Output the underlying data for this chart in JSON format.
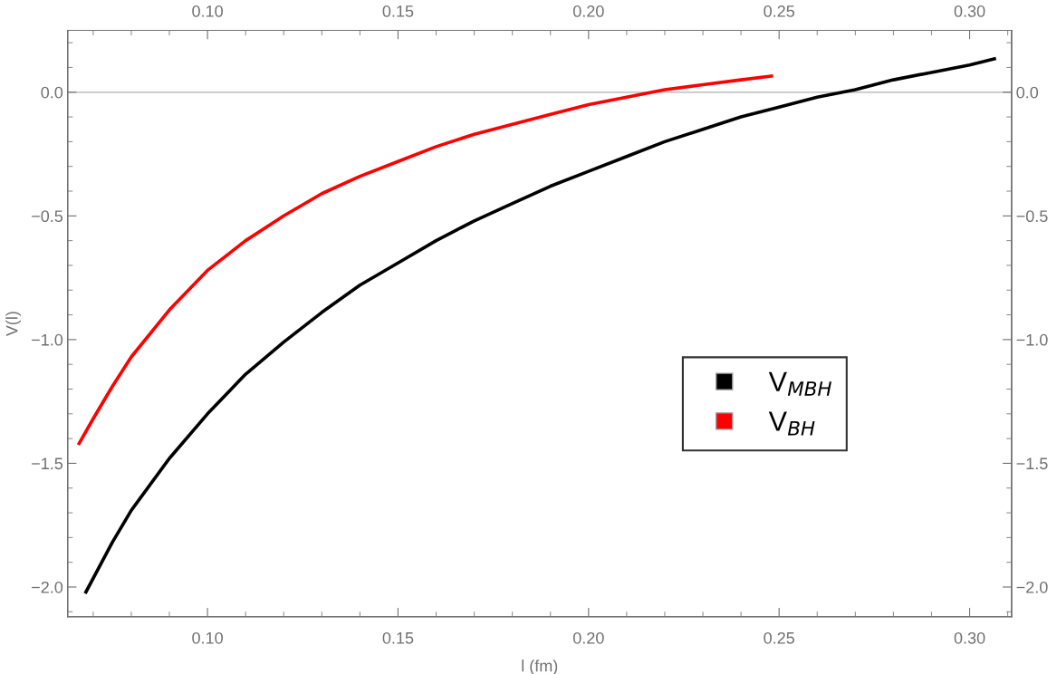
{
  "chart_data": {
    "type": "line",
    "xlabel": "l (fm)",
    "ylabel": "V(l)",
    "xlim": [
      0.0633,
      0.311
    ],
    "ylim": [
      -2.12,
      0.25
    ],
    "xticks": [
      {
        "value": 0.07,
        "label": null
      },
      {
        "value": 0.08,
        "label": null
      },
      {
        "value": 0.09,
        "label": null
      },
      {
        "value": 0.1,
        "label": "0.10"
      },
      {
        "value": 0.11,
        "label": null
      },
      {
        "value": 0.12,
        "label": null
      },
      {
        "value": 0.13,
        "label": null
      },
      {
        "value": 0.14,
        "label": null
      },
      {
        "value": 0.15,
        "label": "0.15"
      },
      {
        "value": 0.16,
        "label": null
      },
      {
        "value": 0.17,
        "label": null
      },
      {
        "value": 0.18,
        "label": null
      },
      {
        "value": 0.19,
        "label": null
      },
      {
        "value": 0.2,
        "label": "0.20"
      },
      {
        "value": 0.21,
        "label": null
      },
      {
        "value": 0.22,
        "label": null
      },
      {
        "value": 0.23,
        "label": null
      },
      {
        "value": 0.24,
        "label": null
      },
      {
        "value": 0.25,
        "label": "0.25"
      },
      {
        "value": 0.26,
        "label": null
      },
      {
        "value": 0.27,
        "label": null
      },
      {
        "value": 0.28,
        "label": null
      },
      {
        "value": 0.29,
        "label": null
      },
      {
        "value": 0.3,
        "label": "0.30"
      },
      {
        "value": 0.31,
        "label": null
      }
    ],
    "x2lim": [
      0.0633,
      0.311
    ],
    "x2ticks": [
      {
        "value": 0.07,
        "label": null
      },
      {
        "value": 0.08,
        "label": null
      },
      {
        "value": 0.09,
        "label": null
      },
      {
        "value": 0.1,
        "label": "0.10"
      },
      {
        "value": 0.11,
        "label": null
      },
      {
        "value": 0.12,
        "label": null
      },
      {
        "value": 0.13,
        "label": null
      },
      {
        "value": 0.14,
        "label": null
      },
      {
        "value": 0.15,
        "label": "0.15"
      },
      {
        "value": 0.16,
        "label": null
      },
      {
        "value": 0.17,
        "label": null
      },
      {
        "value": 0.18,
        "label": null
      },
      {
        "value": 0.19,
        "label": null
      },
      {
        "value": 0.2,
        "label": "0.20"
      },
      {
        "value": 0.21,
        "label": null
      },
      {
        "value": 0.22,
        "label": null
      },
      {
        "value": 0.23,
        "label": null
      },
      {
        "value": 0.24,
        "label": null
      },
      {
        "value": 0.25,
        "label": "0.25"
      },
      {
        "value": 0.26,
        "label": null
      },
      {
        "value": 0.27,
        "label": null
      },
      {
        "value": 0.28,
        "label": null
      },
      {
        "value": 0.29,
        "label": null
      },
      {
        "value": 0.3,
        "label": "0.30"
      },
      {
        "value": 0.31,
        "label": null
      }
    ],
    "yticks": [
      {
        "value": -2.1,
        "label": null
      },
      {
        "value": -2.0,
        "label": "−2.0"
      },
      {
        "value": -1.9,
        "label": null
      },
      {
        "value": -1.8,
        "label": null
      },
      {
        "value": -1.7,
        "label": null
      },
      {
        "value": -1.6,
        "label": null
      },
      {
        "value": -1.5,
        "label": "−1.5"
      },
      {
        "value": -1.4,
        "label": null
      },
      {
        "value": -1.3,
        "label": null
      },
      {
        "value": -1.2,
        "label": null
      },
      {
        "value": -1.1,
        "label": null
      },
      {
        "value": -1.0,
        "label": "−1.0"
      },
      {
        "value": -0.9,
        "label": null
      },
      {
        "value": -0.8,
        "label": null
      },
      {
        "value": -0.7,
        "label": null
      },
      {
        "value": -0.6,
        "label": null
      },
      {
        "value": -0.5,
        "label": "−0.5"
      },
      {
        "value": -0.4,
        "label": null
      },
      {
        "value": -0.3,
        "label": null
      },
      {
        "value": -0.2,
        "label": null
      },
      {
        "value": -0.1,
        "label": null
      },
      {
        "value": 0.0,
        "label": "0.0"
      },
      {
        "value": 0.1,
        "label": null
      },
      {
        "value": 0.2,
        "label": null
      }
    ],
    "y2lim": [
      -2.12,
      0.25
    ],
    "y2ticks": [
      {
        "value": -2.1,
        "label": null
      },
      {
        "value": -2.0,
        "label": "−2.0"
      },
      {
        "value": -1.9,
        "label": null
      },
      {
        "value": -1.8,
        "label": null
      },
      {
        "value": -1.7,
        "label": null
      },
      {
        "value": -1.6,
        "label": null
      },
      {
        "value": -1.5,
        "label": "−1.5"
      },
      {
        "value": -1.4,
        "label": null
      },
      {
        "value": -1.3,
        "label": null
      },
      {
        "value": -1.2,
        "label": null
      },
      {
        "value": -1.1,
        "label": null
      },
      {
        "value": -1.0,
        "label": "−1.0"
      },
      {
        "value": -0.9,
        "label": null
      },
      {
        "value": -0.8,
        "label": null
      },
      {
        "value": -0.7,
        "label": null
      },
      {
        "value": -0.6,
        "label": null
      },
      {
        "value": -0.5,
        "label": "−0.5"
      },
      {
        "value": -0.4,
        "label": null
      },
      {
        "value": -0.3,
        "label": null
      },
      {
        "value": -0.2,
        "label": null
      },
      {
        "value": -0.1,
        "label": null
      },
      {
        "value": 0.0,
        "label": "0.0"
      },
      {
        "value": 0.1,
        "label": null
      },
      {
        "value": 0.2,
        "label": null
      }
    ],
    "ref_lines": [
      {
        "axis": "y",
        "value": 0,
        "color": "#b0b0b0"
      }
    ],
    "grid": false,
    "legend": "bottom right",
    "marker": "none",
    "line_style": "solid",
    "series": [
      {
        "name": "V$_{MBH}$",
        "color": "#000000",
        "x": [
          0.0681,
          0.075,
          0.08,
          0.09,
          0.1,
          0.11,
          0.12,
          0.13,
          0.14,
          0.15,
          0.16,
          0.17,
          0.18,
          0.19,
          0.2,
          0.21,
          0.22,
          0.23,
          0.24,
          0.25,
          0.26,
          0.27,
          0.28,
          0.29,
          0.3,
          0.3065
        ],
        "values": [
          -2.02,
          -1.82,
          -1.69,
          -1.48,
          -1.3,
          -1.14,
          -1.01,
          -0.89,
          -0.78,
          -0.69,
          -0.6,
          -0.52,
          -0.45,
          -0.38,
          -0.32,
          -0.26,
          -0.2,
          -0.15,
          -0.1,
          -0.06,
          -0.02,
          0.01,
          0.05,
          0.08,
          0.11,
          0.135
        ]
      },
      {
        "name": "V$_{BH}$",
        "color": "#ff0000",
        "x": [
          0.0663,
          0.07,
          0.075,
          0.08,
          0.09,
          0.1,
          0.11,
          0.12,
          0.13,
          0.14,
          0.15,
          0.16,
          0.17,
          0.18,
          0.19,
          0.2,
          0.21,
          0.22,
          0.23,
          0.24,
          0.248
        ],
        "values": [
          -1.42,
          -1.32,
          -1.19,
          -1.07,
          -0.88,
          -0.72,
          -0.6,
          -0.5,
          -0.41,
          -0.34,
          -0.28,
          -0.22,
          -0.17,
          -0.13,
          -0.09,
          -0.05,
          -0.02,
          0.01,
          0.03,
          0.05,
          0.065
        ]
      }
    ]
  }
}
